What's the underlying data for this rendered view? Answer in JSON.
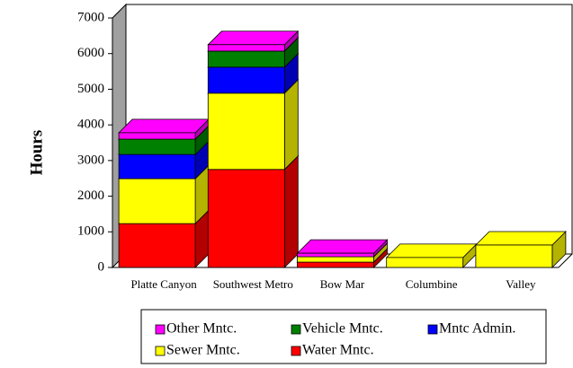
{
  "chart_data": {
    "type": "bar3d_stacked",
    "y_label": "Hours",
    "categories": [
      "Platte Canyon",
      "Southwest Metro",
      "Bow Mar",
      "Columbine",
      "Valley"
    ],
    "series": [
      {
        "name": "Water Mntc.",
        "color": "#ff0000",
        "values": [
          1230,
          2750,
          150,
          0,
          0
        ]
      },
      {
        "name": "Sewer Mntc.",
        "color": "#ffff00",
        "values": [
          1260,
          2140,
          150,
          280,
          630
        ]
      },
      {
        "name": "Mntc Admin.",
        "color": "#0000ff",
        "values": [
          680,
          730,
          0,
          0,
          0
        ]
      },
      {
        "name": "Vehicle Mntc.",
        "color": "#008000",
        "values": [
          430,
          450,
          0,
          0,
          0
        ]
      },
      {
        "name": "Other Mntc.",
        "color": "#ff00ff",
        "values": [
          180,
          180,
          100,
          0,
          0
        ]
      }
    ],
    "ylim": [
      0,
      7000
    ],
    "yticks": [
      0,
      1000,
      2000,
      3000,
      4000,
      5000,
      6000,
      7000
    ]
  }
}
